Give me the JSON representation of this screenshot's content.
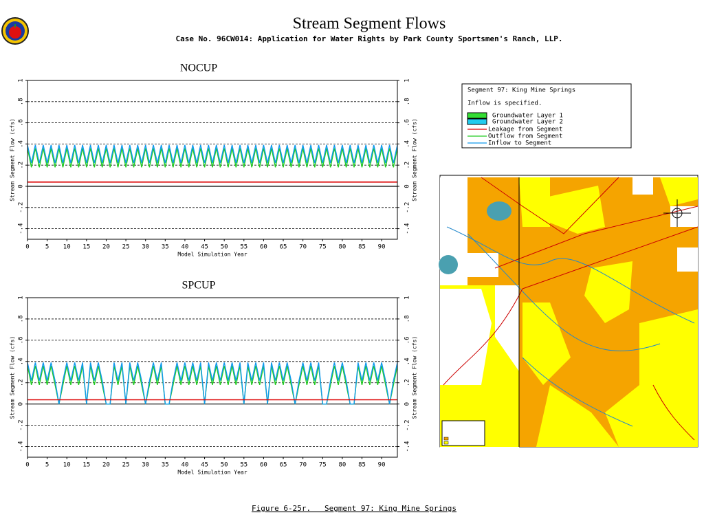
{
  "header": {
    "title": "Stream Segment Flows",
    "subtitle": "Case No. 96CW014: Application for Water Rights by Park County Sportsmen's Ranch, LLP."
  },
  "legend": {
    "title": "Segment 97: King Mine Springs",
    "note": "Inflow is specified.",
    "items": [
      {
        "name": "Groundwater Layer 1",
        "color": "#33dd33"
      },
      {
        "name": "Groundwater Layer 2",
        "color": "#22ccee"
      }
    ]
  },
  "caption": "Figure 6-25r.   Segment 97: King Mine Springs",
  "chart_data": [
    {
      "type": "line",
      "title": "NOCUP",
      "x_label": "Model Simulation Year",
      "y_label": "Stream Segment Flow (cfs)",
      "xlim": [
        0,
        94
      ],
      "xticks": [
        0,
        5,
        10,
        15,
        20,
        25,
        30,
        35,
        40,
        45,
        50,
        55,
        60,
        65,
        70,
        75,
        80,
        85,
        90
      ],
      "ylim": [
        -0.5,
        1
      ],
      "yticks": [
        {
          "value": -0.4,
          "label": "-.4"
        },
        {
          "value": -0.2,
          "label": "-.2"
        },
        0,
        {
          "value": 0.2,
          "label": ".2"
        },
        {
          "value": 0.4,
          "label": ".4"
        },
        {
          "value": 0.6,
          "label": ".6"
        },
        {
          "value": 0.8,
          "label": ".8"
        },
        1
      ],
      "grid": true,
      "x": [
        0,
        1,
        2,
        3,
        4,
        5,
        6,
        7,
        8,
        9,
        10,
        11,
        12,
        13,
        14,
        15,
        16,
        17,
        18,
        19,
        20,
        21,
        22,
        23,
        24,
        25,
        26,
        27,
        28,
        29,
        30,
        31,
        32,
        33,
        34,
        35,
        36,
        37,
        38,
        39,
        40,
        41,
        42,
        43,
        44,
        45,
        46,
        47,
        48,
        49,
        50,
        51,
        52,
        53,
        54,
        55,
        56,
        57,
        58,
        59,
        60,
        61,
        62,
        63,
        64,
        65,
        66,
        67,
        68,
        69,
        70,
        71,
        72,
        73,
        74,
        75,
        76,
        77,
        78,
        79,
        80,
        81,
        82,
        83,
        84,
        85,
        86,
        87,
        88,
        89,
        90,
        91,
        92,
        93,
        94
      ],
      "series": [
        {
          "name": "Leakage from Segment",
          "color": "#dd0000",
          "values": [
            0.04,
            0.04,
            0.04,
            0.04,
            0.04,
            0.04,
            0.04,
            0.04,
            0.04,
            0.04,
            0.04,
            0.04,
            0.04,
            0.04,
            0.04,
            0.04,
            0.04,
            0.04,
            0.04,
            0.04,
            0.04,
            0.04,
            0.04,
            0.04,
            0.04,
            0.04,
            0.04,
            0.04,
            0.04,
            0.04,
            0.04,
            0.04,
            0.04,
            0.04,
            0.04,
            0.04,
            0.04,
            0.04,
            0.04,
            0.04,
            0.04,
            0.04,
            0.04,
            0.04,
            0.04,
            0.04,
            0.04,
            0.04,
            0.04,
            0.04,
            0.04,
            0.04,
            0.04,
            0.04,
            0.04,
            0.04,
            0.04,
            0.04,
            0.04,
            0.04,
            0.04,
            0.04,
            0.04,
            0.04,
            0.04,
            0.04,
            0.04,
            0.04,
            0.04,
            0.04,
            0.04,
            0.04,
            0.04,
            0.04,
            0.04,
            0.04,
            0.04,
            0.04,
            0.04,
            0.04,
            0.04,
            0.04,
            0.04,
            0.04,
            0.04,
            0.04,
            0.04,
            0.04,
            0.04,
            0.04,
            0.04,
            0.04,
            0.04,
            0.04,
            0.04
          ]
        },
        {
          "name": "Outflow from Segment",
          "color": "#22cc22",
          "values": [
            0.36,
            0.18,
            0.36,
            0.18,
            0.36,
            0.18,
            0.36,
            0.18,
            0.36,
            0.18,
            0.36,
            0.18,
            0.36,
            0.18,
            0.36,
            0.18,
            0.36,
            0.18,
            0.36,
            0.18,
            0.36,
            0.18,
            0.36,
            0.18,
            0.36,
            0.18,
            0.36,
            0.18,
            0.36,
            0.18,
            0.36,
            0.18,
            0.36,
            0.18,
            0.36,
            0.18,
            0.36,
            0.18,
            0.36,
            0.18,
            0.36,
            0.18,
            0.36,
            0.18,
            0.36,
            0.18,
            0.36,
            0.18,
            0.36,
            0.18,
            0.36,
            0.18,
            0.36,
            0.18,
            0.36,
            0.18,
            0.36,
            0.18,
            0.36,
            0.18,
            0.36,
            0.18,
            0.36,
            0.18,
            0.36,
            0.18,
            0.36,
            0.18,
            0.36,
            0.18,
            0.36,
            0.18,
            0.36,
            0.18,
            0.36,
            0.18,
            0.36,
            0.18,
            0.36,
            0.18,
            0.36,
            0.18,
            0.36,
            0.18,
            0.36,
            0.18,
            0.36,
            0.18,
            0.36,
            0.18,
            0.36,
            0.18,
            0.36,
            0.18,
            0.36
          ]
        },
        {
          "name": "Inflow to Segment",
          "color": "#1199ee",
          "values": [
            0.39,
            0.22,
            0.39,
            0.22,
            0.39,
            0.22,
            0.39,
            0.22,
            0.39,
            0.22,
            0.39,
            0.22,
            0.39,
            0.22,
            0.39,
            0.22,
            0.39,
            0.22,
            0.39,
            0.22,
            0.39,
            0.22,
            0.39,
            0.22,
            0.39,
            0.22,
            0.39,
            0.22,
            0.39,
            0.22,
            0.39,
            0.22,
            0.39,
            0.22,
            0.39,
            0.22,
            0.39,
            0.22,
            0.39,
            0.22,
            0.39,
            0.22,
            0.39,
            0.22,
            0.39,
            0.22,
            0.39,
            0.22,
            0.39,
            0.22,
            0.39,
            0.22,
            0.39,
            0.22,
            0.39,
            0.22,
            0.39,
            0.22,
            0.39,
            0.22,
            0.39,
            0.22,
            0.39,
            0.22,
            0.39,
            0.22,
            0.39,
            0.22,
            0.39,
            0.22,
            0.39,
            0.22,
            0.39,
            0.22,
            0.39,
            0.22,
            0.39,
            0.22,
            0.39,
            0.22,
            0.39,
            0.22,
            0.39,
            0.22,
            0.39,
            0.22,
            0.39,
            0.22,
            0.39,
            0.22,
            0.39,
            0.22,
            0.39,
            0.22,
            0.39
          ]
        }
      ]
    },
    {
      "type": "line",
      "title": "SPCUP",
      "x_label": "Model Simulation Year",
      "y_label": "Stream Segment Flow (cfs)",
      "xlim": [
        0,
        94
      ],
      "xticks": [
        0,
        5,
        10,
        15,
        20,
        25,
        30,
        35,
        40,
        45,
        50,
        55,
        60,
        65,
        70,
        75,
        80,
        85,
        90
      ],
      "ylim": [
        -0.5,
        1
      ],
      "yticks": [
        {
          "value": -0.4,
          "label": "-.4"
        },
        {
          "value": -0.2,
          "label": "-.2"
        },
        0,
        {
          "value": 0.2,
          "label": ".2"
        },
        {
          "value": 0.4,
          "label": ".4"
        },
        {
          "value": 0.6,
          "label": ".6"
        },
        {
          "value": 0.8,
          "label": ".8"
        },
        1
      ],
      "grid": true,
      "x": [
        0,
        1,
        2,
        3,
        4,
        5,
        6,
        7,
        8,
        9,
        10,
        11,
        12,
        13,
        14,
        15,
        16,
        17,
        18,
        19,
        20,
        21,
        22,
        23,
        24,
        25,
        26,
        27,
        28,
        29,
        30,
        31,
        32,
        33,
        34,
        35,
        36,
        37,
        38,
        39,
        40,
        41,
        42,
        43,
        44,
        45,
        46,
        47,
        48,
        49,
        50,
        51,
        52,
        53,
        54,
        55,
        56,
        57,
        58,
        59,
        60,
        61,
        62,
        63,
        64,
        65,
        66,
        67,
        68,
        69,
        70,
        71,
        72,
        73,
        74,
        75,
        76,
        77,
        78,
        79,
        80,
        81,
        82,
        83,
        84,
        85,
        86,
        87,
        88,
        89,
        90,
        91,
        92,
        93,
        94
      ],
      "series": [
        {
          "name": "Leakage from Segment",
          "color": "#dd0000",
          "values": [
            0.04,
            0.04,
            0.04,
            0.04,
            0.04,
            0.04,
            0.04,
            0.04,
            0.04,
            0.04,
            0.04,
            0.04,
            0.04,
            0.04,
            0.04,
            0.04,
            0.04,
            0.04,
            0.04,
            0.04,
            0.04,
            0.04,
            0.04,
            0.04,
            0.04,
            0.04,
            0.04,
            0.04,
            0.04,
            0.04,
            0.04,
            0.04,
            0.04,
            0.04,
            0.04,
            0.04,
            0.04,
            0.04,
            0.04,
            0.04,
            0.04,
            0.04,
            0.04,
            0.04,
            0.04,
            0.04,
            0.04,
            0.04,
            0.04,
            0.04,
            0.04,
            0.04,
            0.04,
            0.04,
            0.04,
            0.04,
            0.04,
            0.04,
            0.04,
            0.04,
            0.04,
            0.04,
            0.04,
            0.04,
            0.04,
            0.04,
            0.04,
            0.04,
            0.04,
            0.04,
            0.04,
            0.04,
            0.04,
            0.04,
            0.04,
            0.04,
            0.04,
            0.04,
            0.04,
            0.04,
            0.04,
            0.04,
            0.04,
            0.04,
            0.04,
            0.04,
            0.04,
            0.04,
            0.04,
            0.04,
            0.04,
            0.04,
            0.04,
            0.04,
            0.04
          ]
        },
        {
          "name": "Outflow from Segment",
          "color": "#22cc22",
          "values": [
            0.36,
            0.18,
            0.36,
            0.18,
            0.36,
            0.18,
            0.36,
            0.18,
            0,
            0.18,
            0.36,
            0.18,
            0.36,
            0.18,
            0.36,
            0,
            0.36,
            0.18,
            0.36,
            0.18,
            0,
            0,
            0.36,
            0.18,
            0.36,
            0,
            0.36,
            0.18,
            0.36,
            0.18,
            0,
            0.18,
            0.36,
            0.18,
            0.36,
            0,
            0,
            0.18,
            0.36,
            0.18,
            0.36,
            0.18,
            0.36,
            0.18,
            0.36,
            0,
            0.36,
            0.18,
            0.36,
            0.18,
            0.36,
            0.18,
            0.36,
            0.18,
            0.36,
            0,
            0.36,
            0.18,
            0.36,
            0.18,
            0.36,
            0,
            0.36,
            0.18,
            0.36,
            0.18,
            0.36,
            0.18,
            0,
            0.18,
            0.36,
            0.18,
            0.36,
            0.18,
            0.36,
            0,
            0,
            0.18,
            0.36,
            0.18,
            0.36,
            0.18,
            0,
            0,
            0.36,
            0.18,
            0.36,
            0.18,
            0.36,
            0.18,
            0.36,
            0.18,
            0,
            0.18,
            0.36
          ]
        },
        {
          "name": "Inflow to Segment",
          "color": "#1199ee",
          "values": [
            0.39,
            0.22,
            0.39,
            0.22,
            0.39,
            0.22,
            0.39,
            0.22,
            0,
            0.22,
            0.39,
            0.22,
            0.39,
            0.22,
            0.39,
            0,
            0.39,
            0.22,
            0.39,
            0.22,
            0,
            0,
            0.39,
            0.22,
            0.39,
            0,
            0.39,
            0.22,
            0.39,
            0.22,
            0,
            0.22,
            0.39,
            0.22,
            0.39,
            0,
            0,
            0.22,
            0.39,
            0.22,
            0.39,
            0.22,
            0.39,
            0.22,
            0.39,
            0,
            0.39,
            0.22,
            0.39,
            0.22,
            0.39,
            0.22,
            0.39,
            0.22,
            0.39,
            0,
            0.39,
            0.22,
            0.39,
            0.22,
            0.39,
            0,
            0.39,
            0.22,
            0.39,
            0.22,
            0.39,
            0.22,
            0,
            0.22,
            0.39,
            0.22,
            0.39,
            0.22,
            0.39,
            0,
            0,
            0.22,
            0.39,
            0.22,
            0.39,
            0.22,
            0,
            0,
            0.39,
            0.22,
            0.39,
            0.22,
            0.39,
            0.22,
            0.39,
            0.22,
            0,
            0.22,
            0.39
          ]
        }
      ]
    }
  ]
}
